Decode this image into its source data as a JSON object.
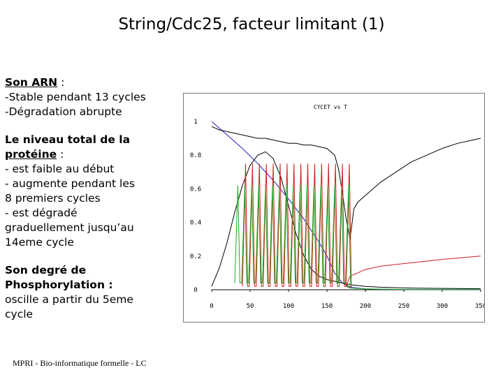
{
  "slide": {
    "title": "String/Cdc25, facteur limitant (1)",
    "footer": "MPRI - Bio-informatique formelle - LC"
  },
  "text": {
    "arn_heading": "Son ARN",
    "arn_colon": " :",
    "arn_line1": "-Stable pendant 13 cycles",
    "arn_line2": "-Dégradation abrupte",
    "prot_heading_1": "Le niveau total de la",
    "prot_heading_2": "protéine",
    "prot_colon": " :",
    "prot_line1": "- est faible au début",
    "prot_line2": "- augmente pendant les",
    "prot_line3": "8 premiers cycles",
    "prot_line4": "- est dégradé",
    "prot_line5": "graduellement jusqu’au",
    "prot_line6": "14eme cycle",
    "phos_heading_1": "Son degré de",
    "phos_heading_2": "Phosphorylation :",
    "phos_line1": "oscille a partir du 5eme",
    "phos_line2": "cycle"
  },
  "chart_data": {
    "type": "line",
    "title": "CYCET vs T",
    "xlim": [
      0,
      350
    ],
    "ylim": [
      0,
      1
    ],
    "xticks": [
      0,
      50,
      100,
      150,
      200,
      250,
      300,
      350
    ],
    "yticks": [
      0,
      0.2,
      0.4,
      0.6,
      0.8,
      1
    ],
    "ytick_labels": [
      "0",
      "0.2",
      "0.4",
      "0.6",
      "0.8",
      "1"
    ],
    "grid": false,
    "series": [
      {
        "color": "#1f1fbf",
        "x": [
          0,
          20,
          40,
          60,
          80,
          100,
          120,
          140,
          150,
          160,
          170,
          180,
          200,
          220,
          240,
          260,
          300,
          350
        ],
        "y": [
          1.0,
          0.92,
          0.84,
          0.75,
          0.65,
          0.54,
          0.42,
          0.28,
          0.2,
          0.1,
          0.04,
          0.015,
          0.005,
          0.003,
          0.002,
          0.001,
          0.001,
          0.001
        ]
      },
      {
        "color": "#000000",
        "x": [
          0,
          10,
          20,
          30,
          40,
          50,
          60,
          70,
          80,
          90,
          100,
          110,
          120,
          130,
          140,
          150,
          160,
          170,
          180,
          190,
          200,
          220,
          240,
          260,
          300,
          350
        ],
        "y": [
          0.02,
          0.13,
          0.28,
          0.46,
          0.62,
          0.74,
          0.8,
          0.82,
          0.78,
          0.67,
          0.5,
          0.33,
          0.2,
          0.12,
          0.08,
          0.06,
          0.05,
          0.04,
          0.03,
          0.025,
          0.02,
          0.015,
          0.012,
          0.01,
          0.008,
          0.006
        ]
      },
      {
        "color": "#000000",
        "x": [
          0,
          10,
          20,
          30,
          40,
          50,
          60,
          70,
          80,
          90,
          100,
          110,
          120,
          130,
          140,
          150,
          155,
          160,
          165,
          170,
          175,
          180,
          185,
          190,
          200,
          220,
          240,
          260,
          280,
          300,
          320,
          340,
          350
        ],
        "y": [
          0.97,
          0.95,
          0.94,
          0.93,
          0.92,
          0.91,
          0.9,
          0.9,
          0.89,
          0.88,
          0.87,
          0.87,
          0.86,
          0.86,
          0.85,
          0.84,
          0.82,
          0.8,
          0.72,
          0.58,
          0.42,
          0.3,
          0.48,
          0.52,
          0.56,
          0.64,
          0.7,
          0.76,
          0.8,
          0.84,
          0.87,
          0.89,
          0.9
        ]
      },
      {
        "color": "#cc1f1f",
        "oscillation": {
          "x_start": 40,
          "x_end": 175,
          "period": 9,
          "peak": 0.75,
          "trough": 0.02
        },
        "x": [
          175,
          180,
          200,
          220,
          240,
          260,
          300,
          350
        ],
        "y": [
          0.02,
          0.08,
          0.12,
          0.14,
          0.15,
          0.16,
          0.18,
          0.2
        ]
      },
      {
        "color": "#1faa1f",
        "oscillation": {
          "x_start": 30,
          "x_end": 175,
          "period": 9,
          "peak": 0.62,
          "trough": 0.04
        },
        "x": [
          175,
          180,
          200,
          220,
          240,
          260,
          300,
          350
        ],
        "y": [
          0.02,
          0.01,
          0.005,
          0.003,
          0.002,
          0.001,
          0.001,
          0.001
        ]
      }
    ]
  }
}
